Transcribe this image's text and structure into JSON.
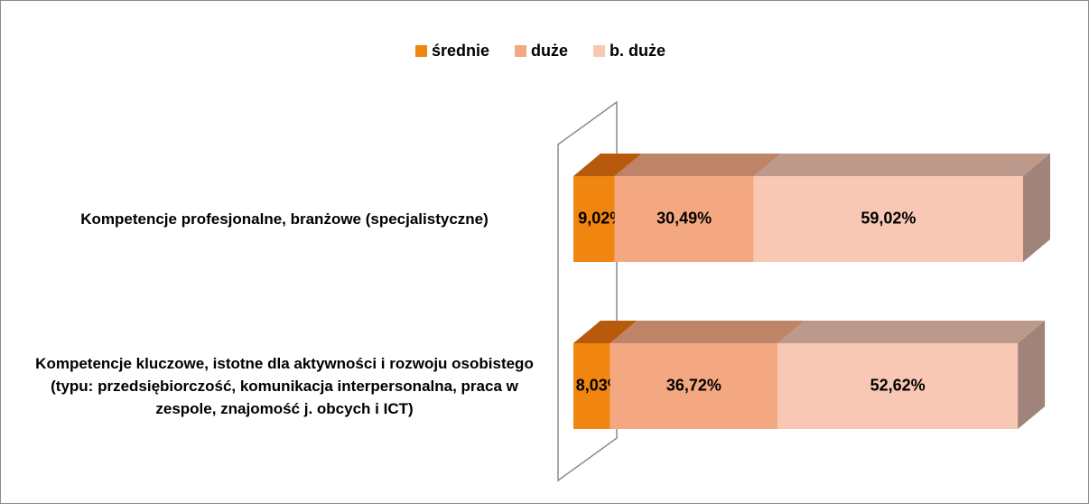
{
  "chart_data": {
    "type": "bar3d_stacked_horizontal",
    "categories": [
      "Kompetencje profesjonalne, branżowe (specjalistyczne)",
      "Kompetencje kluczowe, istotne dla aktywności i rozwoju osobistego (typu: przedsiębiorczość, komunikacja interpersonalna, praca w zespole, znajomość j. obcych i ICT)"
    ],
    "series": [
      {
        "name": "średnie",
        "color": "#f0860f",
        "top": "#b85a0c",
        "values": [
          9.02,
          8.03
        ],
        "value_labels": [
          "9,02%",
          "8,03%"
        ]
      },
      {
        "name": "duże",
        "color": "#f4a882",
        "top": "#bf8367",
        "values": [
          30.49,
          36.72
        ],
        "value_labels": [
          "30,49%",
          "36,72%"
        ]
      },
      {
        "name": "b. duże",
        "color": "#f8c8b4",
        "top": "#bd998c",
        "values": [
          59.02,
          52.62
        ],
        "value_labels": [
          "59,02%",
          "52,62%"
        ]
      }
    ],
    "side_color": "#a0837a",
    "legend": "top"
  }
}
